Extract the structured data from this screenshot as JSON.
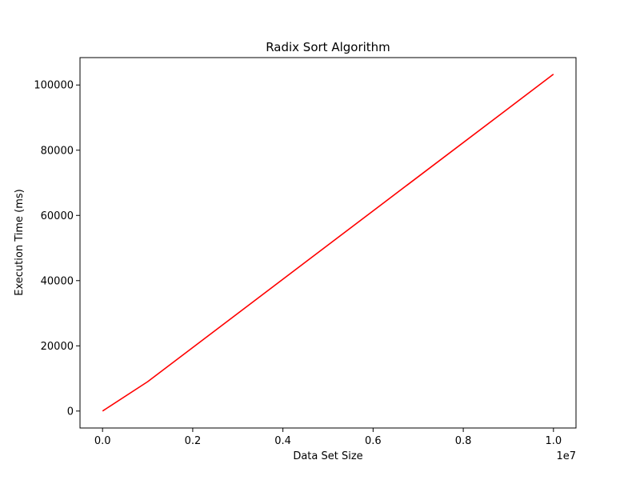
{
  "chart_data": {
    "type": "line",
    "title": "Radix Sort Algorithm",
    "xlabel": "Data Set Size",
    "ylabel": "Execution Time (ms)",
    "x_offset_label": "1e7",
    "xlim": [
      -500000,
      10500000
    ],
    "ylim": [
      -5200,
      108400
    ],
    "x_ticks": [
      0,
      2000000,
      4000000,
      6000000,
      8000000,
      10000000
    ],
    "x_tick_labels": [
      "0.0",
      "0.2",
      "0.4",
      "0.6",
      "0.8",
      "1.0"
    ],
    "y_ticks": [
      0,
      20000,
      40000,
      60000,
      80000,
      100000
    ],
    "y_tick_labels": [
      "0",
      "20000",
      "40000",
      "60000",
      "80000",
      "100000"
    ],
    "grid": false,
    "series": [
      {
        "color": "#ff0000",
        "x": [
          1000,
          10000,
          100000,
          1000000,
          10000000
        ],
        "y": [
          8,
          85,
          900,
          9000,
          103300
        ]
      }
    ]
  }
}
